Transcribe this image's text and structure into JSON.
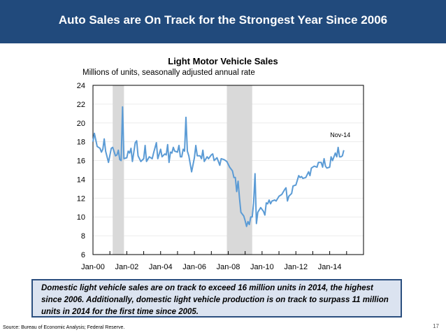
{
  "header": {
    "title": "Auto Sales are On Track for the Strongest Year Since 2006"
  },
  "note": "Domestic light vehicle sales are on track to exceed 16 million units in 2014, the highest since 2006. Additionally, domestic light vehicle production is on track to surpass 11 million units in 2014 for the first time since 2005.",
  "source": "Source: Bureau of Economic Analysis; Federal Reserve.",
  "page_number": "17",
  "chart_data": {
    "type": "line",
    "title": "Light Motor Vehicle Sales",
    "ylabel": "Millions of units, seasonally adjusted annual rate",
    "xlabel": "",
    "xlim": [
      "2000-01",
      "2016-01"
    ],
    "ylim": [
      6,
      24
    ],
    "yticks": [
      "6",
      "8",
      "10",
      "12",
      "14",
      "16",
      "18",
      "20",
      "22",
      "24"
    ],
    "xticks": [
      {
        "date": "2000-01",
        "label": "Jan-00"
      },
      {
        "date": "2002-01",
        "label": "Jan-02"
      },
      {
        "date": "2004-01",
        "label": "Jan-04"
      },
      {
        "date": "2006-01",
        "label": "Jan-06"
      },
      {
        "date": "2008-01",
        "label": "Jan-08"
      },
      {
        "date": "2010-01",
        "label": "Jan-10"
      },
      {
        "date": "2012-01",
        "label": "Jan-12"
      },
      {
        "date": "2014-01",
        "label": "Jan-14"
      }
    ],
    "grid": true,
    "line_color": "#5b9bd5",
    "shading_color": "#d9d9d9",
    "shaded_periods": [
      [
        "2001-03",
        "2001-11"
      ],
      [
        "2007-12",
        "2009-06"
      ]
    ],
    "annotation": {
      "date": "2014-11",
      "label": "Nov-14"
    },
    "series": [
      {
        "values": [
          [
            "2000-01",
            18.0
          ],
          [
            "2000-02",
            18.9
          ],
          [
            "2000-04",
            17.5
          ],
          [
            "2000-06",
            17.3
          ],
          [
            "2000-07",
            16.9
          ],
          [
            "2000-08",
            17.2
          ],
          [
            "2000-09",
            18.3
          ],
          [
            "2000-10",
            17.0
          ],
          [
            "2000-12",
            15.8
          ],
          [
            "2001-02",
            17.3
          ],
          [
            "2001-03",
            17.4
          ],
          [
            "2001-05",
            16.5
          ],
          [
            "2001-06",
            16.6
          ],
          [
            "2001-07",
            17.1
          ],
          [
            "2001-08",
            16.1
          ],
          [
            "2001-09",
            16.0
          ],
          [
            "2001-10",
            21.7
          ],
          [
            "2001-11",
            16.2
          ],
          [
            "2002-01",
            16.3
          ],
          [
            "2002-02",
            17.0
          ],
          [
            "2002-03",
            16.8
          ],
          [
            "2002-04",
            17.3
          ],
          [
            "2002-05",
            15.9
          ],
          [
            "2002-07",
            17.9
          ],
          [
            "2002-08",
            18.1
          ],
          [
            "2002-09",
            16.5
          ],
          [
            "2002-11",
            15.9
          ],
          [
            "2003-01",
            16.2
          ],
          [
            "2003-02",
            17.6
          ],
          [
            "2003-03",
            15.9
          ],
          [
            "2003-05",
            16.4
          ],
          [
            "2003-07",
            16.2
          ],
          [
            "2003-08",
            16.8
          ],
          [
            "2003-10",
            17.9
          ],
          [
            "2003-11",
            16.2
          ],
          [
            "2004-01",
            17.2
          ],
          [
            "2004-02",
            16.4
          ],
          [
            "2004-04",
            16.7
          ],
          [
            "2004-05",
            16.6
          ],
          [
            "2004-06",
            17.7
          ],
          [
            "2004-07",
            15.8
          ],
          [
            "2004-08",
            16.9
          ],
          [
            "2004-09",
            16.8
          ],
          [
            "2004-10",
            17.4
          ],
          [
            "2004-11",
            17.0
          ],
          [
            "2005-01",
            16.9
          ],
          [
            "2005-02",
            17.6
          ],
          [
            "2005-03",
            16.4
          ],
          [
            "2005-04",
            16.4
          ],
          [
            "2005-05",
            17.2
          ],
          [
            "2005-06",
            17.0
          ],
          [
            "2005-07",
            20.6
          ],
          [
            "2005-08",
            17.0
          ],
          [
            "2005-09",
            16.5
          ],
          [
            "2005-11",
            14.8
          ],
          [
            "2006-01",
            16.3
          ],
          [
            "2006-02",
            17.6
          ],
          [
            "2006-03",
            16.5
          ],
          [
            "2006-05",
            16.5
          ],
          [
            "2006-06",
            16.2
          ],
          [
            "2006-07",
            17.1
          ],
          [
            "2006-08",
            15.9
          ],
          [
            "2006-10",
            16.4
          ],
          [
            "2006-11",
            16.2
          ],
          [
            "2007-01",
            16.6
          ],
          [
            "2007-02",
            16.7
          ],
          [
            "2007-03",
            16.0
          ],
          [
            "2007-05",
            16.3
          ],
          [
            "2007-07",
            15.5
          ],
          [
            "2007-08",
            16.2
          ],
          [
            "2007-10",
            16.1
          ],
          [
            "2007-12",
            15.9
          ],
          [
            "2008-02",
            15.3
          ],
          [
            "2008-04",
            14.9
          ],
          [
            "2008-05",
            14.2
          ],
          [
            "2008-06",
            14.2
          ],
          [
            "2008-07",
            12.7
          ],
          [
            "2008-08",
            13.8
          ],
          [
            "2008-09",
            12.0
          ],
          [
            "2008-10",
            10.5
          ],
          [
            "2008-12",
            10.1
          ],
          [
            "2009-01",
            9.6
          ],
          [
            "2009-02",
            9.0
          ],
          [
            "2009-03",
            9.5
          ],
          [
            "2009-04",
            9.2
          ],
          [
            "2009-05",
            10.0
          ],
          [
            "2009-06",
            10.0
          ],
          [
            "2009-07",
            11.5
          ],
          [
            "2009-08",
            14.6
          ],
          [
            "2009-09",
            9.3
          ],
          [
            "2009-10",
            10.5
          ],
          [
            "2009-12",
            11.0
          ],
          [
            "2010-02",
            10.6
          ],
          [
            "2010-03",
            10.2
          ],
          [
            "2010-04",
            11.5
          ],
          [
            "2010-05",
            11.4
          ],
          [
            "2010-06",
            11.8
          ],
          [
            "2010-07",
            11.4
          ],
          [
            "2010-08",
            11.7
          ],
          [
            "2010-10",
            11.8
          ],
          [
            "2010-11",
            11.7
          ],
          [
            "2011-01",
            12.2
          ],
          [
            "2011-03",
            12.4
          ],
          [
            "2011-05",
            12.9
          ],
          [
            "2011-06",
            13.1
          ],
          [
            "2011-07",
            11.7
          ],
          [
            "2011-08",
            12.2
          ],
          [
            "2011-10",
            12.5
          ],
          [
            "2011-11",
            13.3
          ],
          [
            "2012-01",
            13.4
          ],
          [
            "2012-03",
            14.4
          ],
          [
            "2012-04",
            14.2
          ],
          [
            "2012-05",
            14.3
          ],
          [
            "2012-06",
            14.1
          ],
          [
            "2012-08",
            14.2
          ],
          [
            "2012-10",
            14.8
          ],
          [
            "2012-11",
            14.4
          ],
          [
            "2012-12",
            15.2
          ],
          [
            "2013-02",
            15.4
          ],
          [
            "2013-04",
            15.3
          ],
          [
            "2013-05",
            15.8
          ],
          [
            "2013-07",
            15.8
          ],
          [
            "2013-08",
            15.3
          ],
          [
            "2013-09",
            16.2
          ],
          [
            "2013-10",
            15.4
          ],
          [
            "2013-11",
            15.2
          ],
          [
            "2014-01",
            15.3
          ],
          [
            "2014-02",
            16.4
          ],
          [
            "2014-03",
            16.0
          ],
          [
            "2014-05",
            16.8
          ],
          [
            "2014-06",
            16.4
          ],
          [
            "2014-07",
            17.4
          ],
          [
            "2014-08",
            16.4
          ],
          [
            "2014-09",
            16.4
          ],
          [
            "2014-10",
            16.5
          ],
          [
            "2014-11",
            17.1
          ]
        ]
      }
    ]
  }
}
